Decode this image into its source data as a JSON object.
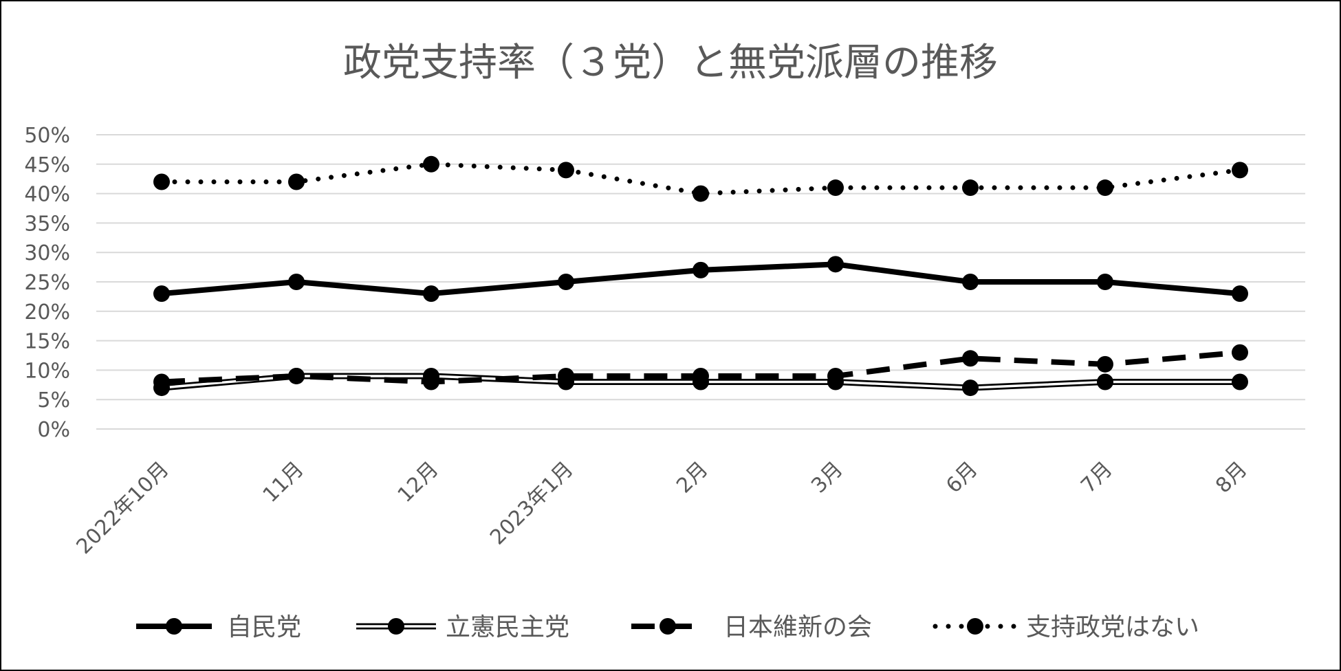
{
  "chart_data": {
    "type": "line",
    "title": "政党支持率（３党）と無党派層の推移",
    "categories": [
      "2022年10月",
      "11月",
      "12月",
      "2023年1月",
      "2月",
      "3月",
      "6月",
      "7月",
      "8月"
    ],
    "y_ticks": [
      "0%",
      "5%",
      "10%",
      "15%",
      "20%",
      "25%",
      "30%",
      "35%",
      "40%",
      "45%",
      "50%"
    ],
    "ylim": [
      0,
      50
    ],
    "y_unit": "%",
    "grid": true,
    "legend_position": "bottom",
    "series": [
      {
        "name": "自民党",
        "style": "solid-thick",
        "color": "#000000",
        "values": [
          23,
          25,
          23,
          25,
          27,
          28,
          25,
          25,
          23
        ]
      },
      {
        "name": "立憲民主党",
        "style": "double-outline",
        "color": "#000000",
        "values": [
          7,
          9,
          9,
          8,
          8,
          8,
          7,
          8,
          8
        ]
      },
      {
        "name": "日本維新の会",
        "style": "dashed",
        "color": "#000000",
        "values": [
          8,
          9,
          8,
          9,
          9,
          9,
          12,
          11,
          13
        ]
      },
      {
        "name": "支持政党はない",
        "style": "dotted",
        "color": "#000000",
        "values": [
          42,
          42,
          45,
          44,
          40,
          41,
          41,
          41,
          44
        ]
      }
    ]
  }
}
